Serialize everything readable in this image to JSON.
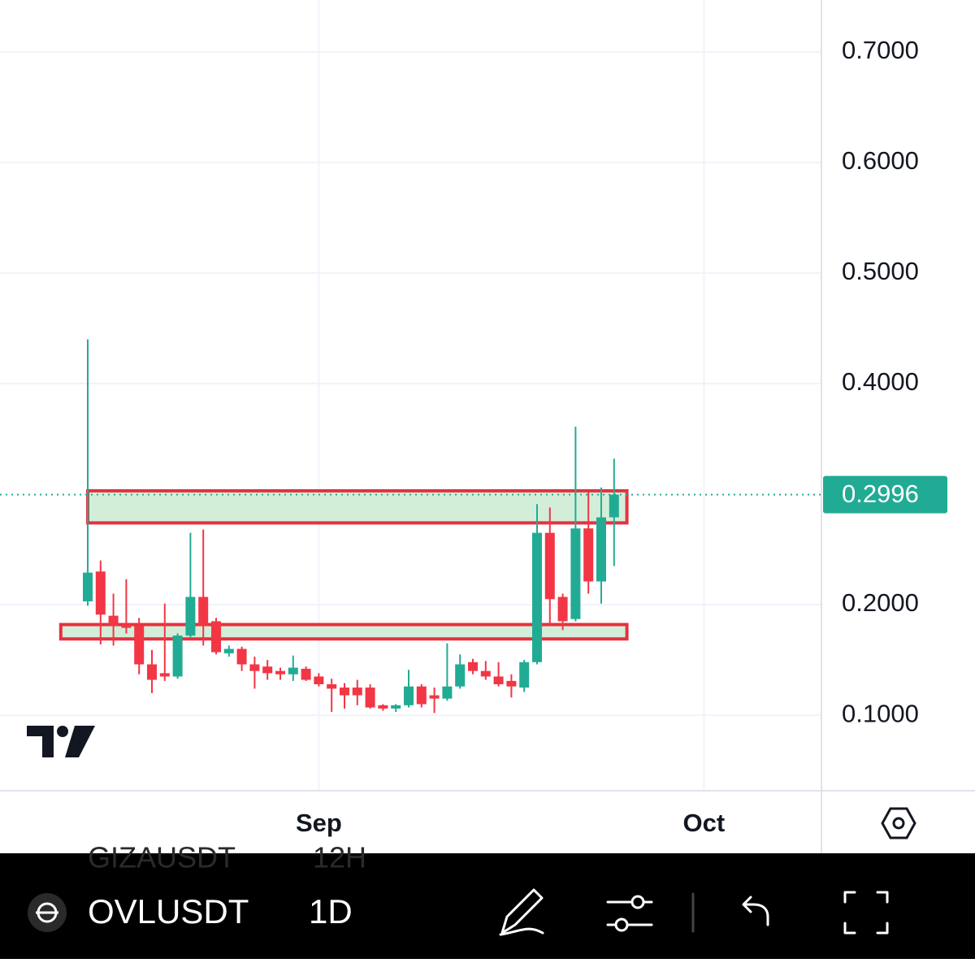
{
  "chart_data": {
    "type": "candlestick",
    "x": [
      0,
      1,
      2,
      3,
      4,
      5,
      6,
      7,
      8,
      9,
      10,
      11,
      12,
      13,
      14,
      15,
      16,
      17,
      18,
      19,
      20,
      21,
      22,
      23,
      24,
      25,
      26,
      27,
      28,
      29,
      30,
      31,
      32,
      33,
      34,
      35,
      36,
      37,
      38,
      39,
      40,
      41
    ],
    "open": [
      0.203,
      0.23,
      0.19,
      0.182,
      0.181,
      0.146,
      0.138,
      0.135,
      0.172,
      0.207,
      0.185,
      0.156,
      0.16,
      0.146,
      0.144,
      0.14,
      0.137,
      0.142,
      0.135,
      0.128,
      0.125,
      0.125,
      0.125,
      0.109,
      0.106,
      0.109,
      0.126,
      0.118,
      0.115,
      0.126,
      0.148,
      0.14,
      0.135,
      0.131,
      0.125,
      0.148,
      0.265,
      0.207,
      0.187,
      0.269,
      0.221,
      0.279
    ],
    "high": [
      0.44,
      0.24,
      0.21,
      0.223,
      0.188,
      0.159,
      0.201,
      0.174,
      0.265,
      0.268,
      0.188,
      0.163,
      0.162,
      0.153,
      0.15,
      0.143,
      0.154,
      0.144,
      0.138,
      0.133,
      0.129,
      0.132,
      0.128,
      0.11,
      0.11,
      0.141,
      0.128,
      0.125,
      0.165,
      0.155,
      0.151,
      0.149,
      0.148,
      0.137,
      0.15,
      0.291,
      0.288,
      0.21,
      0.361,
      0.302,
      0.306,
      0.332
    ],
    "low": [
      0.199,
      0.164,
      0.163,
      0.174,
      0.137,
      0.12,
      0.131,
      0.133,
      0.17,
      0.163,
      0.155,
      0.153,
      0.14,
      0.124,
      0.132,
      0.132,
      0.131,
      0.131,
      0.126,
      0.103,
      0.106,
      0.109,
      0.106,
      0.104,
      0.103,
      0.107,
      0.107,
      0.102,
      0.113,
      0.124,
      0.137,
      0.132,
      0.126,
      0.116,
      0.121,
      0.146,
      0.181,
      0.177,
      0.185,
      0.21,
      0.201,
      0.235
    ],
    "close": [
      0.229,
      0.191,
      0.181,
      0.179,
      0.146,
      0.132,
      0.135,
      0.172,
      0.207,
      0.181,
      0.157,
      0.16,
      0.146,
      0.14,
      0.138,
      0.137,
      0.143,
      0.132,
      0.128,
      0.124,
      0.118,
      0.118,
      0.107,
      0.106,
      0.109,
      0.126,
      0.11,
      0.115,
      0.126,
      0.146,
      0.14,
      0.135,
      0.128,
      0.126,
      0.148,
      0.265,
      0.205,
      0.185,
      0.269,
      0.221,
      0.279,
      0.2996
    ],
    "up_color": "#22ab94",
    "down_color": "#f23645",
    "xlim": [
      -6.835,
      57.09
    ],
    "xticks": [
      {
        "value": 18,
        "label": "Sep"
      },
      {
        "value": 48,
        "label": "Oct"
      }
    ],
    "ylim": [
      0.0324,
      0.7471
    ],
    "yticks": [
      {
        "value": 0.1,
        "label": "0.1000"
      },
      {
        "value": 0.2,
        "label": "0.2000"
      },
      {
        "value": 0.4,
        "label": "0.4000"
      },
      {
        "value": 0.5,
        "label": "0.5000"
      },
      {
        "value": 0.6,
        "label": "0.6000"
      },
      {
        "value": 0.7,
        "label": "0.7000"
      }
    ],
    "grid": true,
    "last_price": 0.2996,
    "last_price_color": "#22ab94",
    "zones": [
      {
        "x": [
          0,
          42
        ],
        "y": [
          0.274,
          0.303
        ]
      },
      {
        "x": [
          -2.1,
          42
        ],
        "y": [
          0.169,
          0.182
        ]
      }
    ],
    "zone_fill": "#d3eed8",
    "zone_stroke": "#e5323f"
  },
  "ui": {
    "symbol": "OVLUSDT",
    "interval": "1D",
    "ghost_symbol": "GIZAUSDT",
    "ghost_interval": "12H"
  }
}
